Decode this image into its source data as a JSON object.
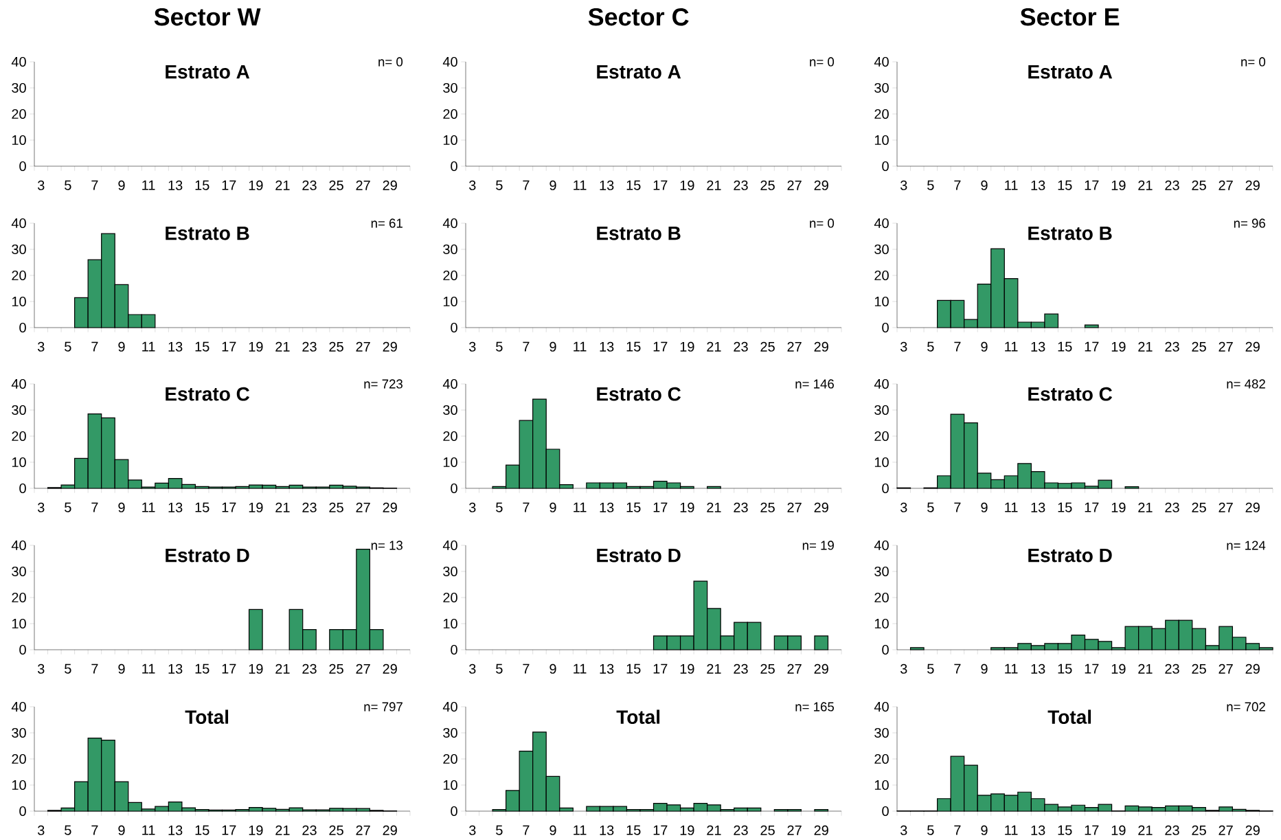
{
  "chart_data": [
    {
      "type": "bar",
      "title": "Sector W",
      "subtitle": "Estrato A",
      "annotations": [
        "n= 0"
      ],
      "categories": [
        "3",
        null,
        "5",
        null,
        "7",
        null,
        "9",
        null,
        "11",
        null,
        "13",
        null,
        "15",
        null,
        "17",
        null,
        "19",
        null,
        "21",
        null,
        "23",
        null,
        "25",
        null,
        "27",
        null,
        "29",
        null
      ],
      "values": [
        0,
        0,
        0,
        0,
        0,
        0,
        0,
        0,
        0,
        0,
        0,
        0,
        0,
        0,
        0,
        0,
        0,
        0,
        0,
        0,
        0,
        0,
        0,
        0,
        0,
        0,
        0,
        0
      ],
      "color": "#339966",
      "ylim": [
        0,
        40
      ],
      "yticks": [
        0,
        10,
        20,
        30,
        40
      ]
    },
    {
      "type": "bar",
      "title": "Sector C",
      "subtitle": "Estrato A",
      "annotations": [
        "n= 0"
      ],
      "categories": [
        "3",
        null,
        "5",
        null,
        "7",
        null,
        "9",
        null,
        "11",
        null,
        "13",
        null,
        "15",
        null,
        "17",
        null,
        "19",
        null,
        "21",
        null,
        "23",
        null,
        "25",
        null,
        "27",
        null,
        "29",
        null
      ],
      "values": [
        0,
        0,
        0,
        0,
        0,
        0,
        0,
        0,
        0,
        0,
        0,
        0,
        0,
        0,
        0,
        0,
        0,
        0,
        0,
        0,
        0,
        0,
        0,
        0,
        0,
        0,
        0,
        0
      ],
      "color": "#339966",
      "ylim": [
        0,
        40
      ],
      "yticks": [
        0,
        10,
        20,
        30,
        40
      ]
    },
    {
      "type": "bar",
      "title": "Sector E",
      "subtitle": "Estrato A",
      "annotations": [
        "n= 0"
      ],
      "categories": [
        "3",
        null,
        "5",
        null,
        "7",
        null,
        "9",
        null,
        "11",
        null,
        "13",
        null,
        "15",
        null,
        "17",
        null,
        "19",
        null,
        "21",
        null,
        "23",
        null,
        "25",
        null,
        "27",
        null,
        "29",
        null
      ],
      "values": [
        0,
        0,
        0,
        0,
        0,
        0,
        0,
        0,
        0,
        0,
        0,
        0,
        0,
        0,
        0,
        0,
        0,
        0,
        0,
        0,
        0,
        0,
        0,
        0,
        0,
        0,
        0,
        0
      ],
      "color": "#339966",
      "ylim": [
        0,
        40
      ],
      "yticks": [
        0,
        10,
        20,
        30,
        40
      ]
    },
    {
      "type": "bar",
      "subtitle": "Estrato B",
      "annotations": [
        "n= 61"
      ],
      "categories": [
        "3",
        null,
        "5",
        null,
        "7",
        null,
        "9",
        null,
        "11",
        null,
        "13",
        null,
        "15",
        null,
        "17",
        null,
        "19",
        null,
        "21",
        null,
        "23",
        null,
        "25",
        null,
        "27",
        null,
        "29",
        null
      ],
      "values": [
        0,
        0,
        0,
        11.5,
        26,
        36,
        16.5,
        5,
        5,
        0,
        0,
        0,
        0,
        0,
        0,
        0,
        0,
        0,
        0,
        0,
        0,
        0,
        0,
        0,
        0,
        0,
        0,
        0
      ],
      "color": "#339966",
      "ylim": [
        0,
        40
      ],
      "yticks": [
        0,
        10,
        20,
        30,
        40
      ]
    },
    {
      "type": "bar",
      "subtitle": "Estrato B",
      "annotations": [
        "n= 0"
      ],
      "categories": [
        "3",
        null,
        "5",
        null,
        "7",
        null,
        "9",
        null,
        "11",
        null,
        "13",
        null,
        "15",
        null,
        "17",
        null,
        "19",
        null,
        "21",
        null,
        "23",
        null,
        "25",
        null,
        "27",
        null,
        "29",
        null
      ],
      "values": [
        0,
        0,
        0,
        0,
        0,
        0,
        0,
        0,
        0,
        0,
        0,
        0,
        0,
        0,
        0,
        0,
        0,
        0,
        0,
        0,
        0,
        0,
        0,
        0,
        0,
        0,
        0,
        0
      ],
      "color": "#339966",
      "ylim": [
        0,
        40
      ],
      "yticks": [
        0,
        10,
        20,
        30,
        40
      ]
    },
    {
      "type": "bar",
      "subtitle": "Estrato B",
      "annotations": [
        "n= 96"
      ],
      "categories": [
        "3",
        null,
        "5",
        null,
        "7",
        null,
        "9",
        null,
        "11",
        null,
        "13",
        null,
        "15",
        null,
        "17",
        null,
        "19",
        null,
        "21",
        null,
        "23",
        null,
        "25",
        null,
        "27",
        null,
        "29",
        null
      ],
      "values": [
        0,
        0,
        0,
        10.4,
        10.4,
        3.1,
        16.7,
        30.2,
        18.8,
        2.1,
        2.1,
        5.2,
        0,
        0,
        1,
        0,
        0,
        0,
        0,
        0,
        0,
        0,
        0,
        0,
        0,
        0,
        0,
        0
      ],
      "color": "#339966",
      "ylim": [
        0,
        40
      ],
      "yticks": [
        0,
        10,
        20,
        30,
        40
      ]
    },
    {
      "type": "bar",
      "subtitle": "Estrato C",
      "annotations": [
        "n= 723"
      ],
      "categories": [
        "3",
        null,
        "5",
        null,
        "7",
        null,
        "9",
        null,
        "11",
        null,
        "13",
        null,
        "15",
        null,
        "17",
        null,
        "19",
        null,
        "21",
        null,
        "23",
        null,
        "25",
        null,
        "27",
        null,
        "29",
        null
      ],
      "values": [
        0,
        0.3,
        1.3,
        11.5,
        28.5,
        27,
        11,
        3.2,
        0.5,
        2,
        3.8,
        1.5,
        0.7,
        0.5,
        0.5,
        0.7,
        1.3,
        1.2,
        0.7,
        1.2,
        0.5,
        0.5,
        1.2,
        0.8,
        0.5,
        0.2,
        0.1,
        0
      ],
      "color": "#339966",
      "ylim": [
        0,
        40
      ],
      "yticks": [
        0,
        10,
        20,
        30,
        40
      ]
    },
    {
      "type": "bar",
      "subtitle": "Estrato C",
      "annotations": [
        "n= 146"
      ],
      "categories": [
        "3",
        null,
        "5",
        null,
        "7",
        null,
        "9",
        null,
        "11",
        null,
        "13",
        null,
        "15",
        null,
        "17",
        null,
        "19",
        null,
        "21",
        null,
        "23",
        null,
        "25",
        null,
        "27",
        null,
        "29",
        null
      ],
      "values": [
        0,
        0,
        0.7,
        8.9,
        26,
        34.2,
        15,
        1.4,
        0,
        2.1,
        2.1,
        2.1,
        0.7,
        0.7,
        2.7,
        2.1,
        0.7,
        0,
        0.7,
        0,
        0,
        0,
        0,
        0,
        0,
        0,
        0,
        0
      ],
      "color": "#339966",
      "ylim": [
        0,
        40
      ],
      "yticks": [
        0,
        10,
        20,
        30,
        40
      ]
    },
    {
      "type": "bar",
      "subtitle": "Estrato C",
      "annotations": [
        "n= 482"
      ],
      "categories": [
        "3",
        null,
        "5",
        null,
        "7",
        null,
        "9",
        null,
        "11",
        null,
        "13",
        null,
        "15",
        null,
        "17",
        null,
        "19",
        null,
        "21",
        null,
        "23",
        null,
        "25",
        null,
        "27",
        null,
        "29",
        null
      ],
      "values": [
        0.2,
        0,
        0.2,
        4.8,
        28.4,
        25.1,
        5.8,
        3.3,
        4.8,
        9.5,
        6.4,
        2.1,
        1.9,
        2.1,
        0.8,
        3.1,
        0,
        0.6,
        0,
        0,
        0,
        0,
        0,
        0,
        0,
        0,
        0,
        0
      ],
      "color": "#339966",
      "ylim": [
        0,
        40
      ],
      "yticks": [
        0,
        10,
        20,
        30,
        40
      ]
    },
    {
      "type": "bar",
      "subtitle": "Estrato D",
      "annotations": [
        "n= 13"
      ],
      "categories": [
        "3",
        null,
        "5",
        null,
        "7",
        null,
        "9",
        null,
        "11",
        null,
        "13",
        null,
        "15",
        null,
        "17",
        null,
        "19",
        null,
        "21",
        null,
        "23",
        null,
        "25",
        null,
        "27",
        null,
        "29",
        null
      ],
      "values": [
        0,
        0,
        0,
        0,
        0,
        0,
        0,
        0,
        0,
        0,
        0,
        0,
        0,
        0,
        0,
        0,
        15.4,
        0,
        0,
        15.4,
        7.7,
        0,
        7.7,
        7.7,
        38.5,
        7.7,
        0,
        0
      ],
      "color": "#339966",
      "ylim": [
        0,
        40
      ],
      "yticks": [
        0,
        10,
        20,
        30,
        40
      ]
    },
    {
      "type": "bar",
      "subtitle": "Estrato D",
      "annotations": [
        "n= 19"
      ],
      "categories": [
        "3",
        null,
        "5",
        null,
        "7",
        null,
        "9",
        null,
        "11",
        null,
        "13",
        null,
        "15",
        null,
        "17",
        null,
        "19",
        null,
        "21",
        null,
        "23",
        null,
        "25",
        null,
        "27",
        null,
        "29",
        null
      ],
      "values": [
        0,
        0,
        0,
        0,
        0,
        0,
        0,
        0,
        0,
        0,
        0,
        0,
        0,
        0,
        5.3,
        5.3,
        5.3,
        26.3,
        15.8,
        5.3,
        10.5,
        10.5,
        0,
        5.3,
        5.3,
        0,
        5.3,
        0
      ],
      "color": "#339966",
      "ylim": [
        0,
        40
      ],
      "yticks": [
        0,
        10,
        20,
        30,
        40
      ]
    },
    {
      "type": "bar",
      "subtitle": "Estrato D",
      "annotations": [
        "n= 124"
      ],
      "categories": [
        "3",
        null,
        "5",
        null,
        "7",
        null,
        "9",
        null,
        "11",
        null,
        "13",
        null,
        "15",
        null,
        "17",
        null,
        "19",
        null,
        "21",
        null,
        "23",
        null,
        "25",
        null,
        "27",
        null,
        "29",
        null
      ],
      "values": [
        0,
        0.8,
        0,
        0,
        0,
        0,
        0,
        0.8,
        0.8,
        2.4,
        1.6,
        2.4,
        2.4,
        5.6,
        4,
        3.2,
        0.8,
        8.9,
        8.9,
        8.1,
        11.3,
        11.3,
        8.1,
        1.6,
        8.9,
        4.8,
        2.4,
        0.8
      ],
      "color": "#339966",
      "ylim": [
        0,
        40
      ],
      "yticks": [
        0,
        10,
        20,
        30,
        40
      ]
    },
    {
      "type": "bar",
      "subtitle": "Total",
      "annotations": [
        "n= 797"
      ],
      "categories": [
        "3",
        null,
        "5",
        null,
        "7",
        null,
        "9",
        null,
        "11",
        null,
        "13",
        null,
        "15",
        null,
        "17",
        null,
        "19",
        null,
        "21",
        null,
        "23",
        null,
        "25",
        null,
        "27",
        null,
        "29",
        null
      ],
      "values": [
        0,
        0.3,
        1.2,
        11.3,
        28,
        27.2,
        11.3,
        3.3,
        0.8,
        1.8,
        3.5,
        1.3,
        0.6,
        0.4,
        0.4,
        0.6,
        1.4,
        1.1,
        0.7,
        1.3,
        0.5,
        0.5,
        1.1,
        1,
        1,
        0.3,
        0.1,
        0
      ],
      "color": "#339966",
      "ylim": [
        0,
        40
      ],
      "yticks": [
        0,
        10,
        20,
        30,
        40
      ]
    },
    {
      "type": "bar",
      "subtitle": "Total",
      "annotations": [
        "n= 165"
      ],
      "categories": [
        "3",
        null,
        "5",
        null,
        "7",
        null,
        "9",
        null,
        "11",
        null,
        "13",
        null,
        "15",
        null,
        "17",
        null,
        "19",
        null,
        "21",
        null,
        "23",
        null,
        "25",
        null,
        "27",
        null,
        "29",
        null
      ],
      "values": [
        0,
        0,
        0.6,
        7.9,
        23,
        30.3,
        13.3,
        1.2,
        0,
        1.8,
        1.8,
        1.8,
        0.6,
        0.6,
        3,
        2.4,
        1.2,
        3,
        2.4,
        0.6,
        1.2,
        1.2,
        0,
        0.6,
        0.6,
        0,
        0.6,
        0
      ],
      "color": "#339966",
      "ylim": [
        0,
        40
      ],
      "yticks": [
        0,
        10,
        20,
        30,
        40
      ]
    },
    {
      "type": "bar",
      "subtitle": "Total",
      "annotations": [
        "n= 702"
      ],
      "categories": [
        "3",
        null,
        "5",
        null,
        "7",
        null,
        "9",
        null,
        "11",
        null,
        "13",
        null,
        "15",
        null,
        "17",
        null,
        "19",
        null,
        "21",
        null,
        "23",
        null,
        "25",
        null,
        "27",
        null,
        "29",
        null
      ],
      "values": [
        0.1,
        0.1,
        0.1,
        4.8,
        21,
        17.6,
        6.1,
        6.6,
        6.1,
        7.3,
        4.8,
        2.6,
        1.6,
        2.3,
        1.4,
        2.6,
        0.1,
        2,
        1.6,
        1.4,
        2,
        2,
        1.4,
        0.3,
        1.6,
        0.7,
        0.3,
        0.1
      ],
      "color": "#339966",
      "ylim": [
        0,
        40
      ],
      "yticks": [
        0,
        10,
        20,
        30,
        40
      ]
    }
  ]
}
